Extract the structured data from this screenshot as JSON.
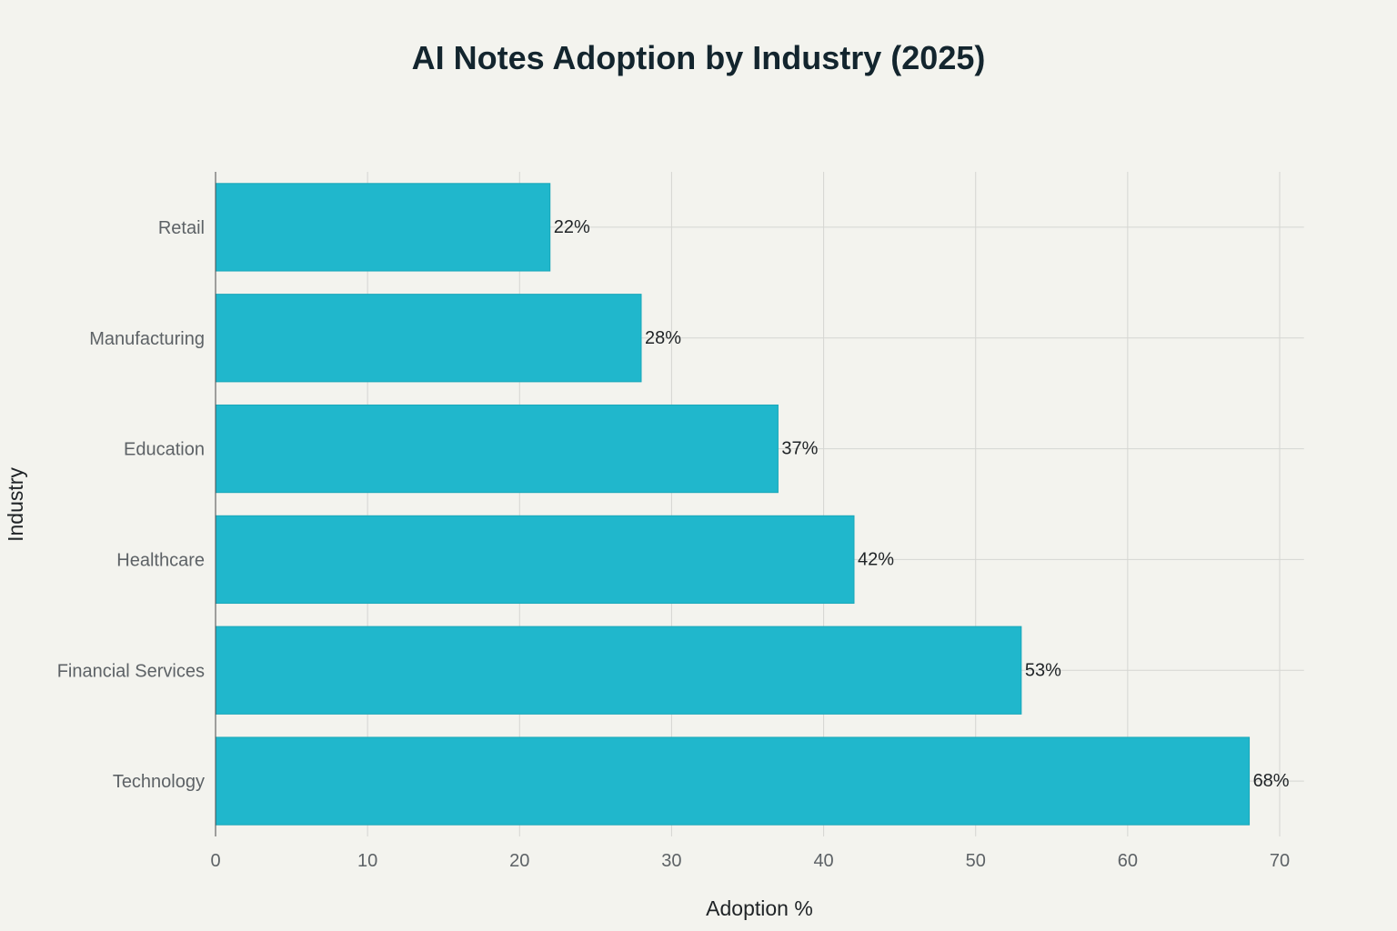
{
  "chart_data": {
    "type": "bar",
    "orientation": "horizontal",
    "title": "AI Notes Adoption by Industry (2025)",
    "xlabel": "Adoption %",
    "ylabel": "Industry",
    "categories": [
      "Technology",
      "Financial Services",
      "Healthcare",
      "Education",
      "Manufacturing",
      "Retail"
    ],
    "values": [
      68,
      53,
      42,
      37,
      28,
      22
    ],
    "data_labels": [
      "68%",
      "53%",
      "42%",
      "37%",
      "28%",
      "22%"
    ],
    "xlim": [
      0,
      71.6
    ],
    "xticks": [
      0,
      10,
      20,
      30,
      40,
      50,
      60,
      70
    ],
    "grid": true,
    "legend": "none",
    "colors": {
      "bar": "#20b7cc",
      "background": "#f3f3ee"
    }
  }
}
